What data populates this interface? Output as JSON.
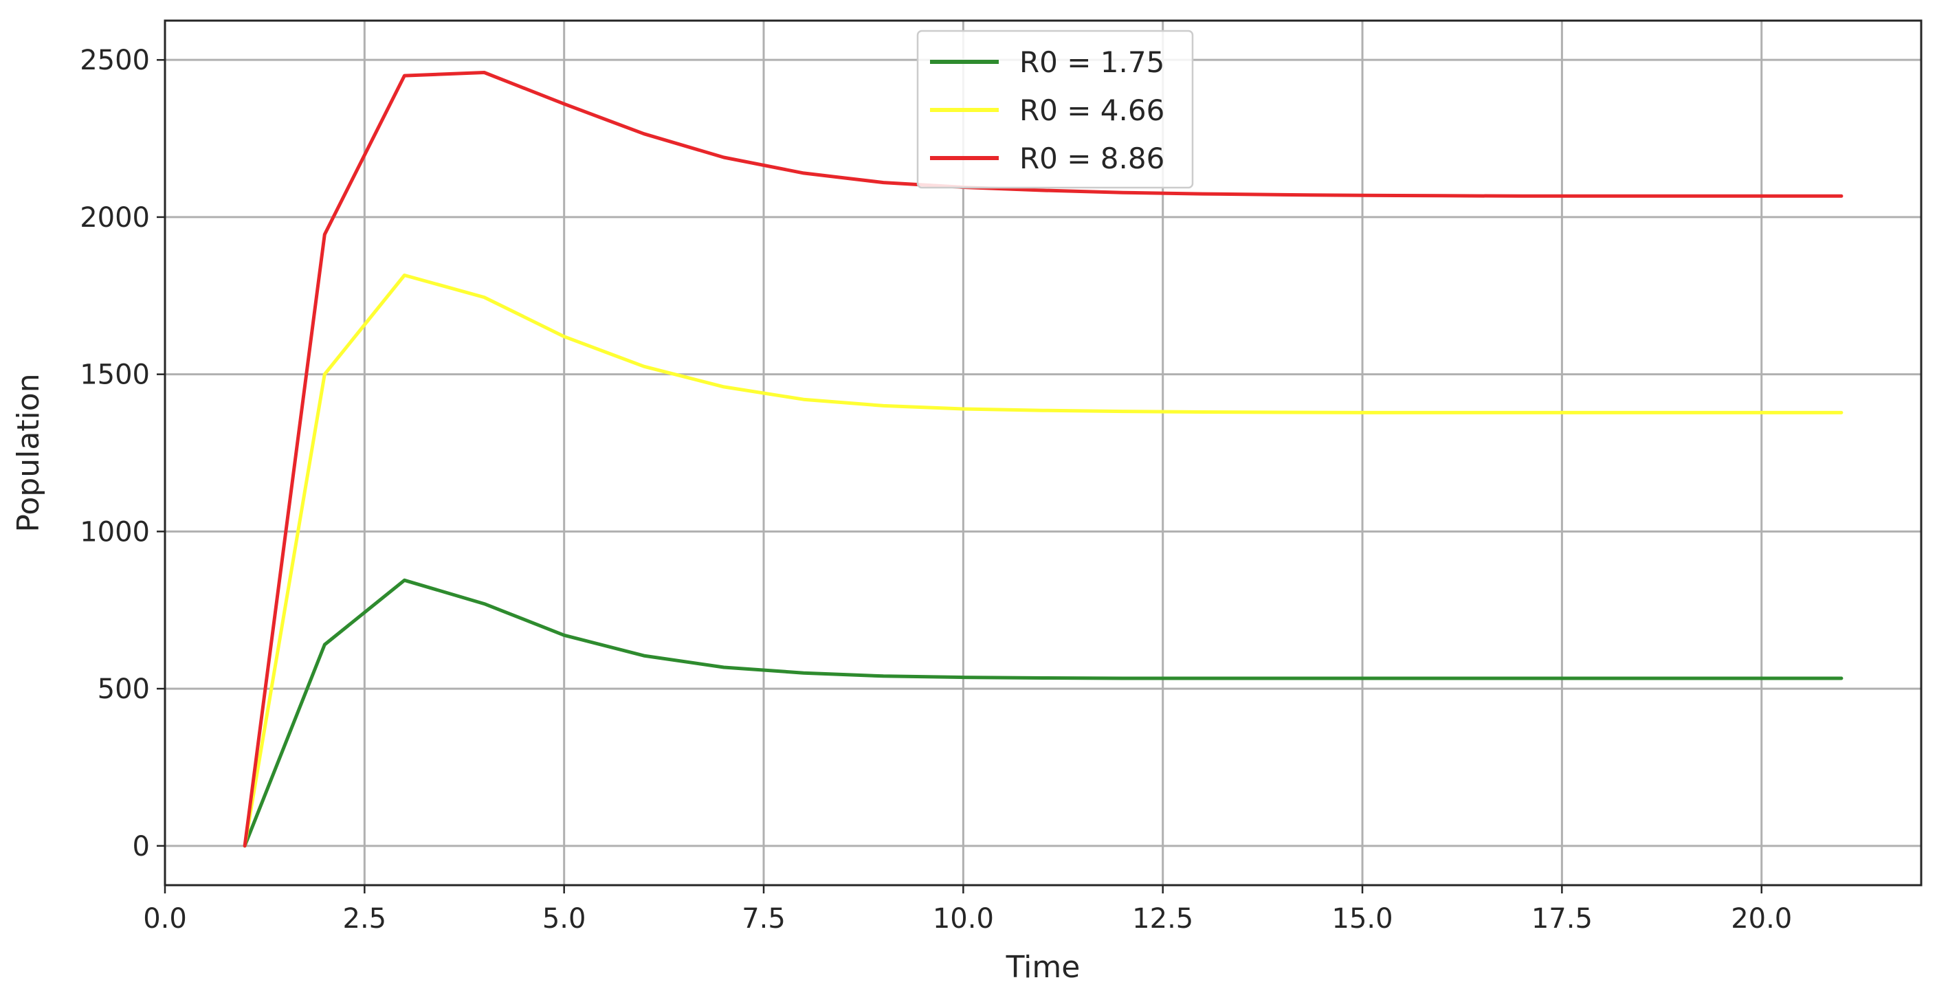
{
  "chart_data": {
    "type": "line",
    "title": "",
    "xlabel": "Time",
    "ylabel": "Population",
    "xlim": [
      0,
      22
    ],
    "ylim": [
      -125,
      2625
    ],
    "xticks": [
      0.0,
      2.5,
      5.0,
      7.5,
      10.0,
      12.5,
      15.0,
      17.5,
      20.0
    ],
    "xtick_labels": [
      "0.0",
      "2.5",
      "5.0",
      "7.5",
      "10.0",
      "12.5",
      "15.0",
      "17.5",
      "20.0"
    ],
    "yticks": [
      0,
      500,
      1000,
      1500,
      2000,
      2500
    ],
    "ytick_labels": [
      "0",
      "500",
      "1000",
      "1500",
      "2000",
      "2500"
    ],
    "grid": true,
    "legend_position": "top-center",
    "x": [
      1,
      2,
      3,
      4,
      5,
      6,
      7,
      8,
      9,
      10,
      11,
      12,
      13,
      14,
      15,
      16,
      17,
      18,
      19,
      20,
      21
    ],
    "series": [
      {
        "name": "R0 = 1.75",
        "color": "#2e8b2e",
        "values": [
          0,
          640,
          845,
          770,
          670,
          605,
          568,
          550,
          540,
          536,
          534,
          533,
          533,
          533,
          533,
          533,
          533,
          533,
          533,
          533,
          533
        ]
      },
      {
        "name": "R0 = 4.66",
        "color": "#ffff33",
        "values": [
          0,
          1500,
          1815,
          1745,
          1620,
          1525,
          1460,
          1420,
          1400,
          1390,
          1385,
          1382,
          1380,
          1379,
          1378,
          1378,
          1378,
          1378,
          1378,
          1378,
          1378
        ]
      },
      {
        "name": "R0 = 8.86",
        "color": "#e8262a",
        "values": [
          0,
          1945,
          2450,
          2460,
          2360,
          2265,
          2190,
          2140,
          2110,
          2095,
          2085,
          2078,
          2074,
          2071,
          2069,
          2068,
          2067,
          2067,
          2067,
          2067,
          2067
        ]
      }
    ]
  }
}
